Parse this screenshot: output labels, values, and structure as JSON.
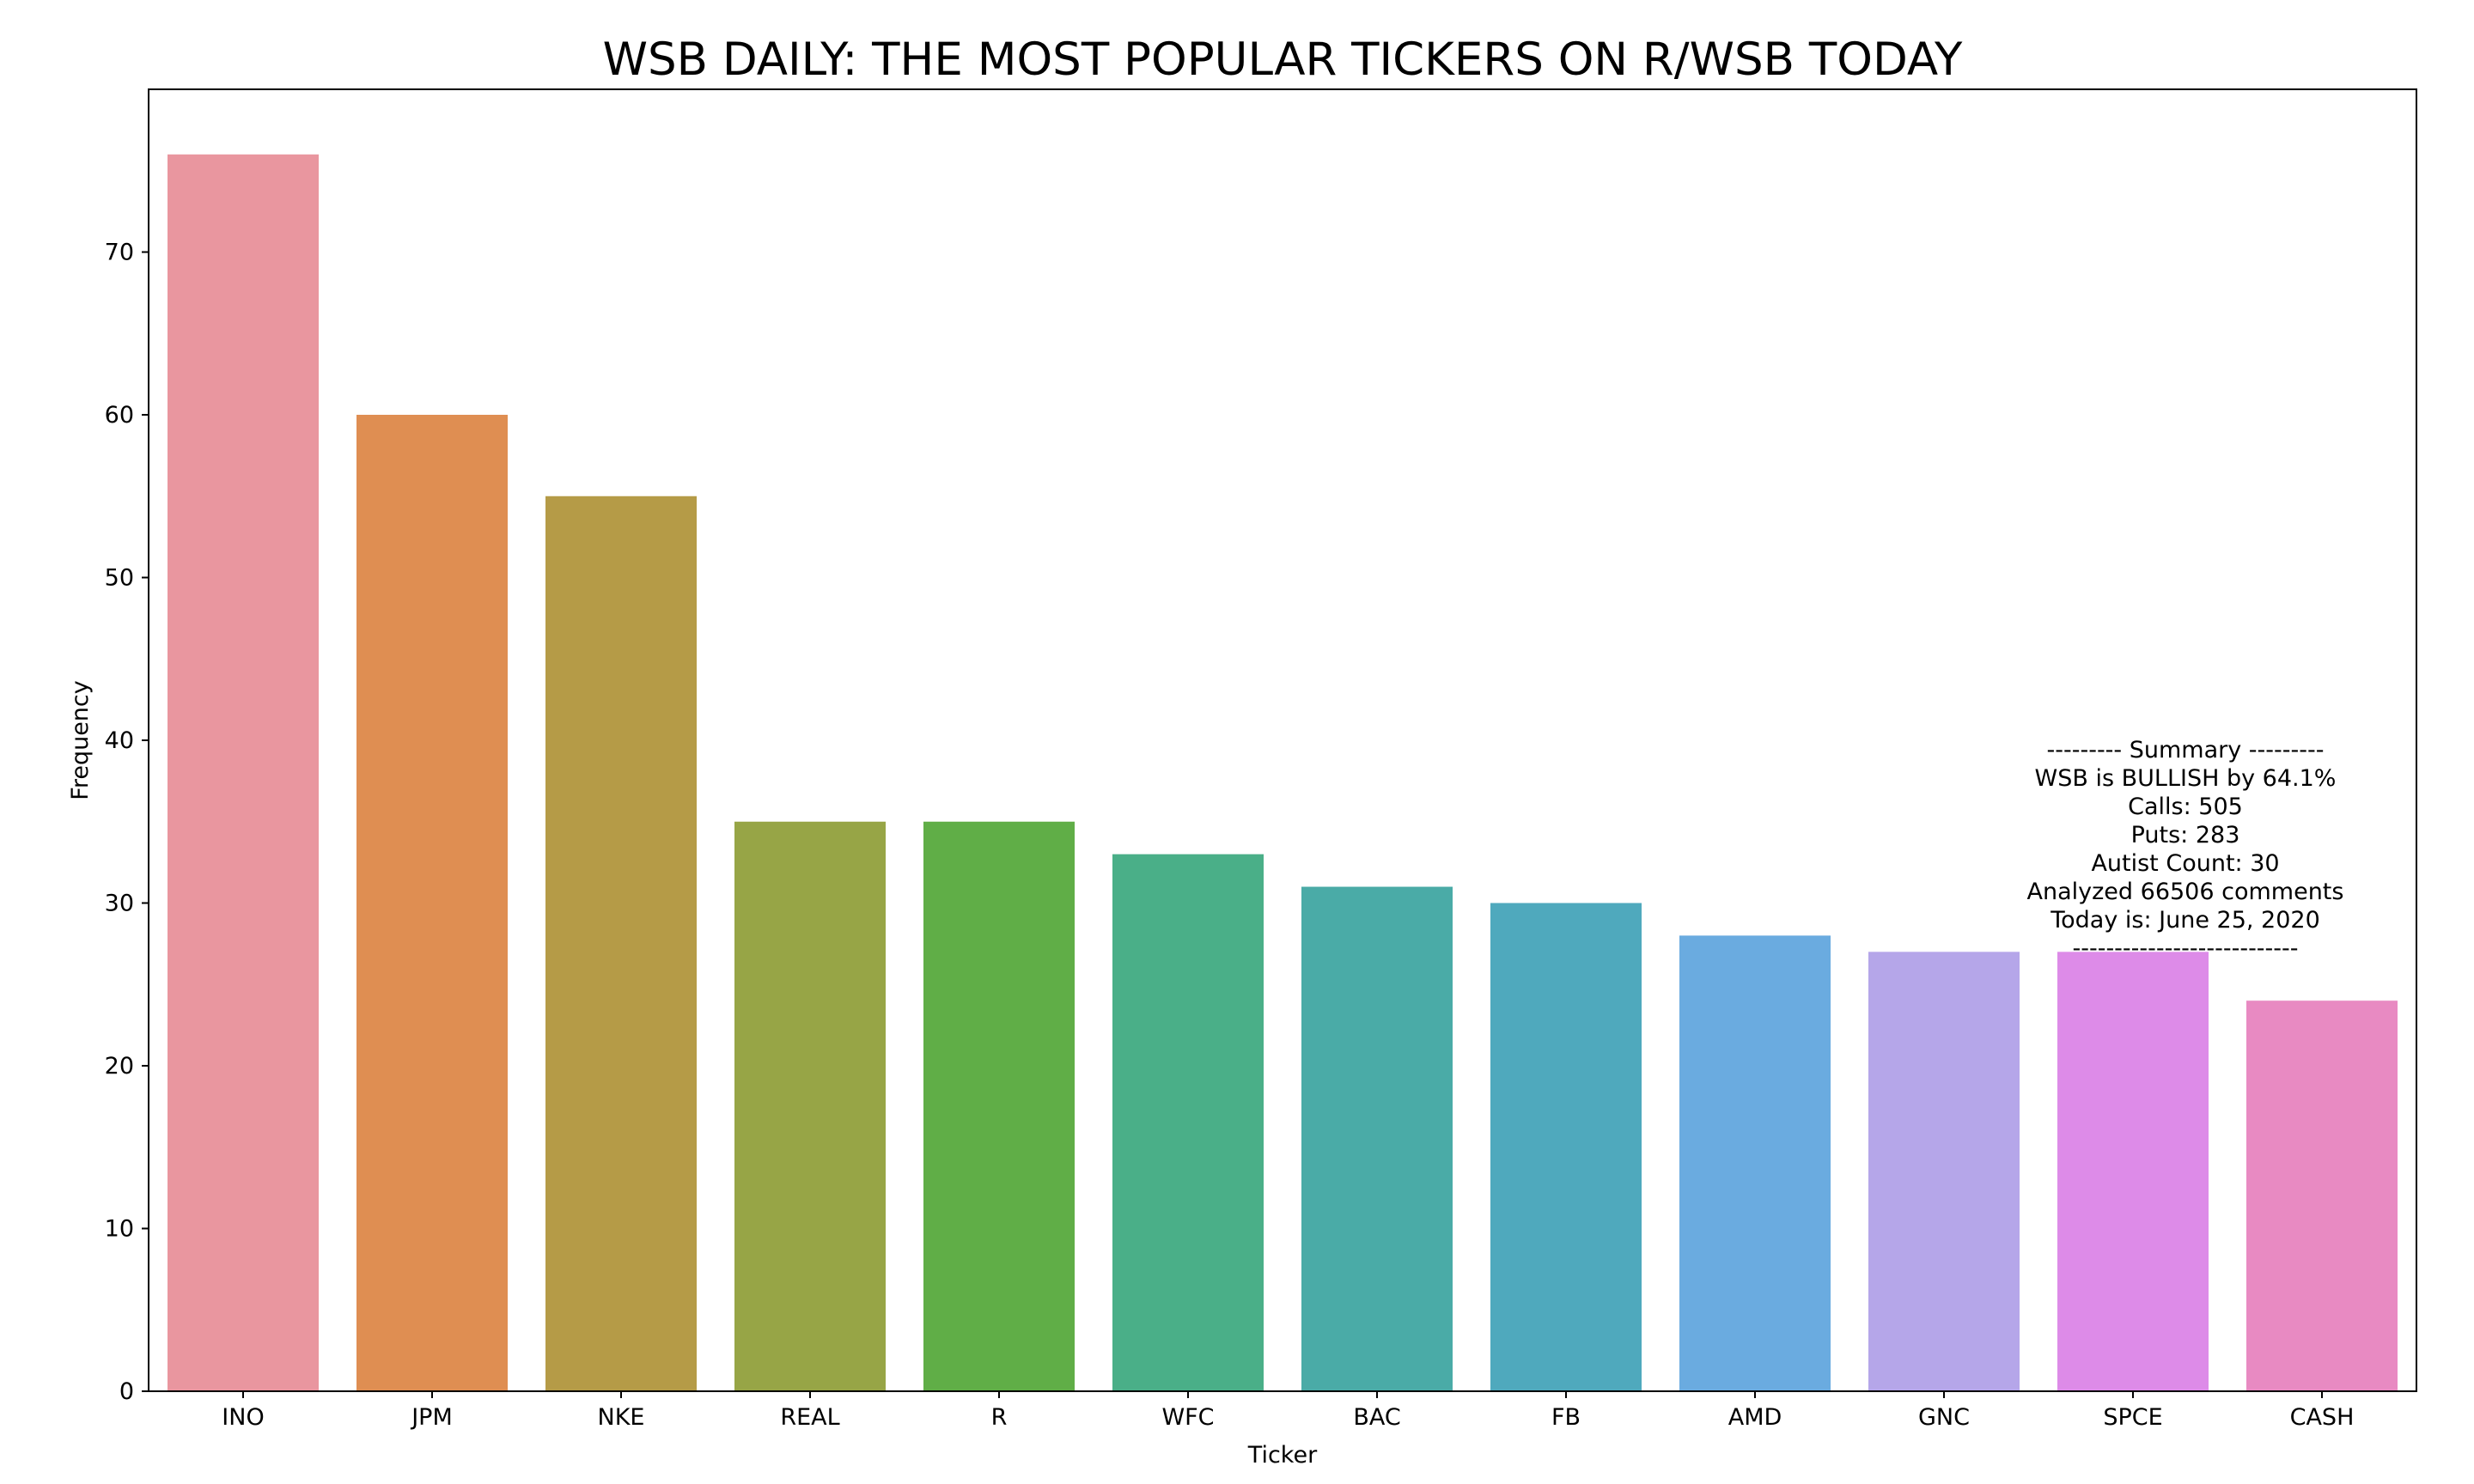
{
  "chart_data": {
    "type": "bar",
    "title": "WSB DAILY: THE MOST POPULAR TICKERS ON R/WSB TODAY",
    "xlabel": "Ticker",
    "ylabel": "Frequency",
    "ylim": [
      0,
      80
    ],
    "yticks": [
      0,
      10,
      20,
      30,
      40,
      50,
      60,
      70
    ],
    "grid": false,
    "categories": [
      "INO",
      "JPM",
      "NKE",
      "REAL",
      "R",
      "WFC",
      "BAC",
      "FB",
      "AMD",
      "GNC",
      "SPCE",
      "CASH"
    ],
    "values": [
      76,
      60,
      55,
      35,
      35,
      33,
      31,
      30,
      28,
      27,
      27,
      24
    ],
    "colors": [
      "#e9969f",
      "#df8e52",
      "#b59b47",
      "#97a546",
      "#60ae47",
      "#4aaf88",
      "#4aaba7",
      "#4fa9bd",
      "#6aabe0",
      "#b5a6e9",
      "#dd8be8",
      "#e88ac2"
    ],
    "annotation": [
      "--------- Summary ---------",
      "WSB is BULLISH by 64.1%",
      "Calls: 505",
      "Puts: 283",
      "Autist Count: 30",
      "Analyzed 66506 comments",
      "Today is: June 25, 2020",
      "---------------------------"
    ]
  }
}
